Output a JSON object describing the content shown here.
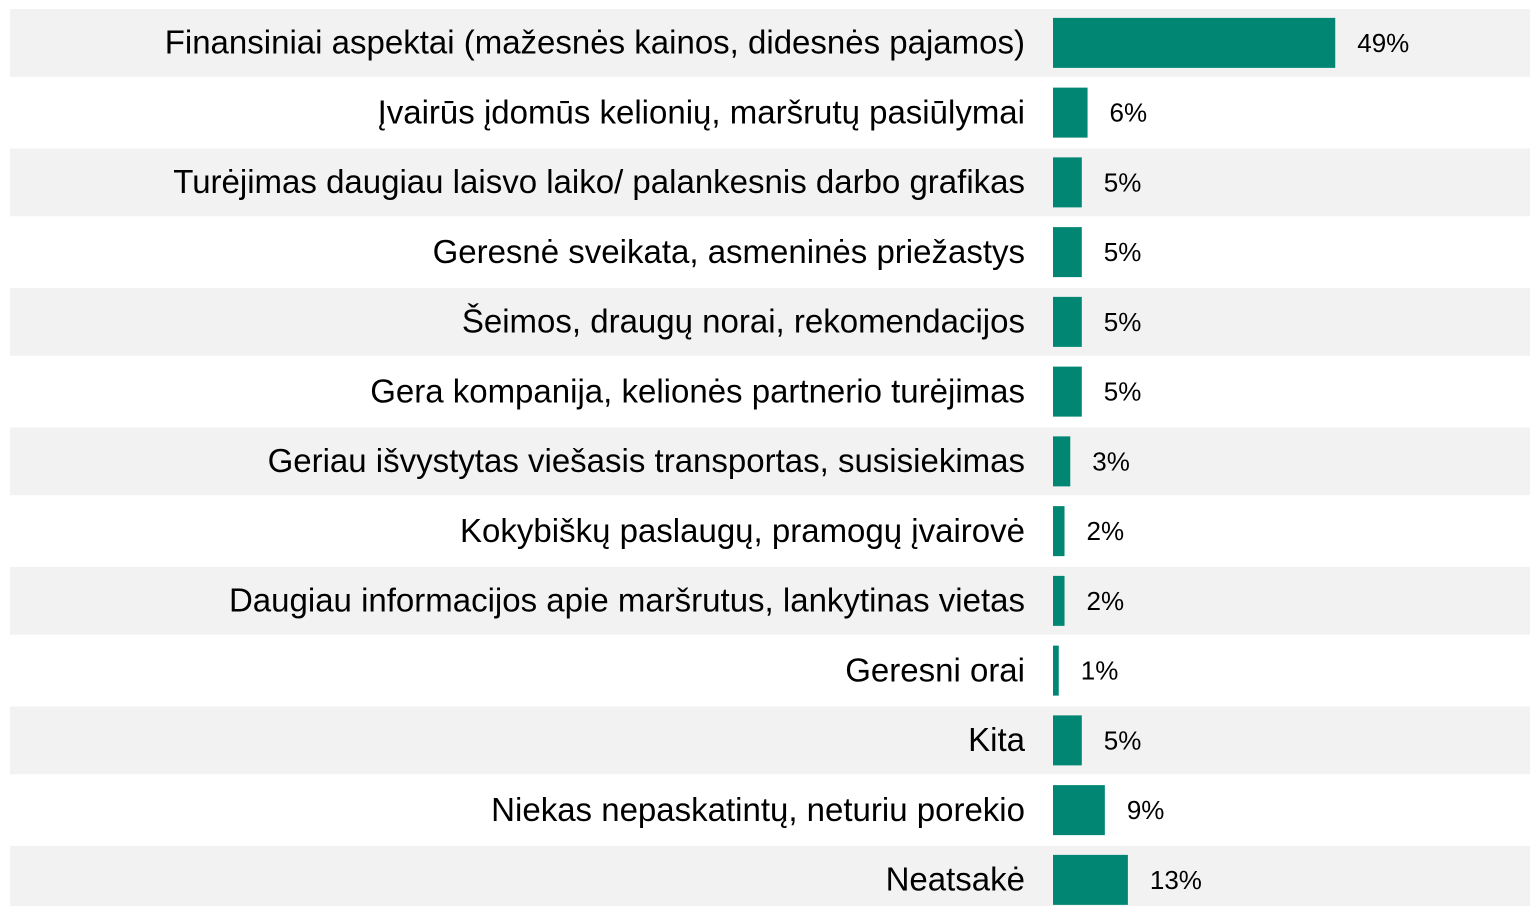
{
  "chart_data": {
    "type": "bar",
    "orientation": "horizontal",
    "categories": [
      "Finansiniai aspektai (mažesnės kainos, didesnės pajamos)",
      "Įvairūs įdomūs kelionių, maršrutų pasiūlymai",
      "Turėjimas daugiau laisvo laiko/ palankesnis darbo grafikas",
      "Geresnė sveikata, asmeninės priežastys",
      "Šeimos, draugų norai, rekomendacijos",
      "Gera kompanija, kelionės partnerio turėjimas",
      "Geriau išvystytas viešasis transportas, susisiekimas",
      "Kokybiškų paslaugų, pramogų įvairovė",
      "Daugiau informacijos apie maršrutus, lankytinas vietas",
      "Geresni orai",
      "Kita",
      "Niekas nepaskatintų, neturiu porekio",
      "Neatsakė"
    ],
    "values": [
      49,
      6,
      5,
      5,
      5,
      5,
      3,
      2,
      2,
      1,
      5,
      9,
      13
    ],
    "value_labels": [
      "49%",
      "6%",
      "5%",
      "5%",
      "5%",
      "5%",
      "3%",
      "2%",
      "2%",
      "1%",
      "5%",
      "9%",
      "13%"
    ],
    "color": "#008673"
  }
}
